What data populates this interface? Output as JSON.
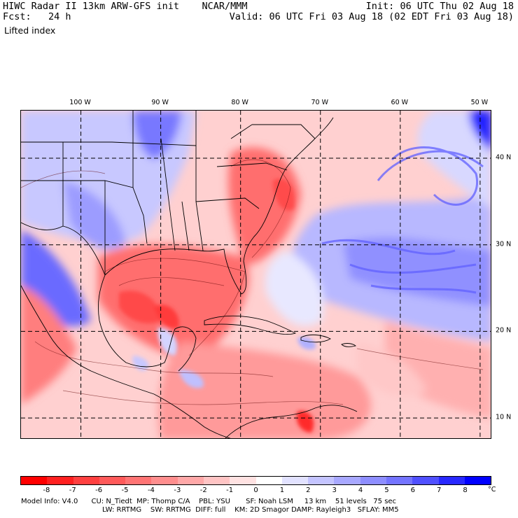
{
  "header": {
    "model_line": "HIWC Radar II 13km ARW-GFS init    NCAR/MMM",
    "forecast_line": "Fcst:   24 h",
    "init_line": "Init: 06 UTC Thu 02 Aug 18",
    "valid_line": "Valid: 06 UTC Fri 03 Aug 18 (02 EDT Fri 03 Aug 18)",
    "field_name": "Lifted index"
  },
  "map": {
    "longitude_labels": [
      "100 W",
      "90 W",
      "80 W",
      "70 W",
      "60 W",
      "50 W"
    ],
    "latitude_labels": [
      "40 N",
      "30 N",
      "20 N",
      "10 N"
    ],
    "longitudes": [
      -100,
      -90,
      -80,
      -70,
      -60,
      -50
    ],
    "latitudes": [
      40,
      30,
      20,
      10
    ],
    "lon_range": [
      -107.5,
      -48.5
    ],
    "lat_range": [
      7.5,
      45.5
    ],
    "colors": {
      "land_outline": "#000000",
      "graticule": "#000000"
    }
  },
  "colorbar": {
    "unit": "°C",
    "labels": [
      "-8",
      "-7",
      "-6",
      "-5",
      "-4",
      "-3",
      "-2",
      "-1",
      "0",
      "1",
      "2",
      "3",
      "4",
      "5",
      "6",
      "7",
      "8"
    ],
    "colors": [
      "#ff0000",
      "#ff2020",
      "#ff4040",
      "#ff5a5a",
      "#ff7474",
      "#ff8e8e",
      "#ffa8a8",
      "#ffc4c4",
      "#ffe2e2",
      "#ffffff",
      "#e2e2ff",
      "#c4c4ff",
      "#a8a8ff",
      "#8e8eff",
      "#7474ff",
      "#5050ff",
      "#2828ff",
      "#0000ff"
    ]
  },
  "footer": {
    "line1": "Model Info: V4.0      CU: N_Tiedt  MP: Thomp C/A    PBL: YSU       SF: Noah LSM     13 km    51 levels   75 sec",
    "line2": "LW: RRTMG    SW: RRTMG  DIFF: full    KM: 2D Smagor DAMP: Rayleigh3   SFLAY: MM5"
  }
}
